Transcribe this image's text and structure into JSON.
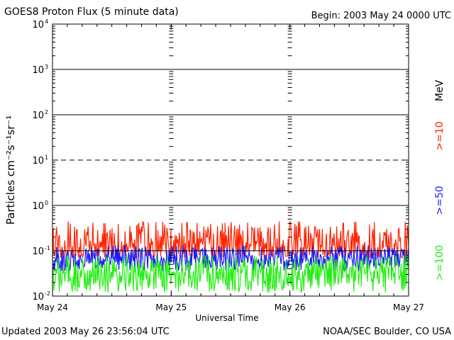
{
  "header": {
    "title": "GOES8 Proton Flux (5 minute data)",
    "begin": "Begin: 2003 May 24 0000 UTC"
  },
  "footer": {
    "updated": "Updated 2003 May 26 23:56:04 UTC",
    "credit": "NOAA/SEC Boulder, CO USA"
  },
  "colors": {
    "ge10": "#ff2200",
    "ge50": "#1a1aff",
    "ge100": "#22ee11"
  },
  "chart_data": {
    "type": "line",
    "title": "GOES8 Proton Flux (5 minute data)",
    "xlabel": "Universal Time",
    "ylabel": "Particles cm⁻²s⁻¹sr⁻¹",
    "yscale": "log",
    "ylim": [
      0.01,
      10000
    ],
    "yticks": [
      {
        "value": 0.01,
        "base": "10",
        "exp": "-2"
      },
      {
        "value": 0.1,
        "base": "10",
        "exp": "-1"
      },
      {
        "value": 1,
        "base": "10",
        "exp": "0"
      },
      {
        "value": 10,
        "base": "10",
        "exp": "1"
      },
      {
        "value": 100,
        "base": "10",
        "exp": "2"
      },
      {
        "value": 1000,
        "base": "10",
        "exp": "3"
      },
      {
        "value": 10000,
        "base": "10",
        "exp": "4"
      }
    ],
    "xticks": [
      "May 24",
      "May 25",
      "May 26",
      "May 27"
    ],
    "legend_unit": "MeV",
    "legend_placement": "right",
    "series": [
      {
        "name": ">=10",
        "color": "#ff2200",
        "typical_range": [
          0.07,
          0.45
        ]
      },
      {
        "name": ">=50",
        "color": "#1a1aff",
        "typical_range": [
          0.035,
          0.13
        ]
      },
      {
        "name": ">=100",
        "color": "#22ee11",
        "typical_range": [
          0.012,
          0.08
        ]
      }
    ],
    "thresholds": [
      {
        "value": 10,
        "style": "dashed"
      },
      {
        "value": 0.1,
        "style": "solid"
      }
    ]
  }
}
